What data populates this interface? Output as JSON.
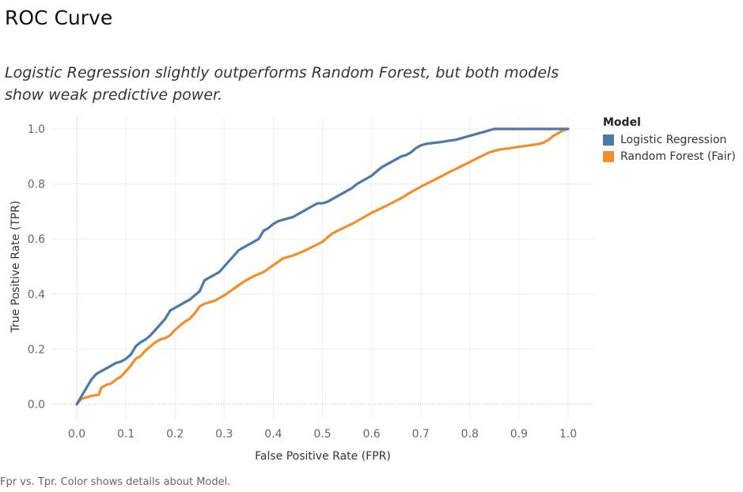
{
  "title": "ROC Curve",
  "subtitle": "Logistic Regression slightly outperforms Random Forest, but both models show weak predictive power.",
  "caption": "Fpr vs. Tpr.  Color shows details about Model.",
  "chart_data": {
    "type": "line",
    "xlabel": "False Positive Rate (FPR)",
    "ylabel": "True Positive Rate (TPR)",
    "xlim": [
      -0.05,
      1.05
    ],
    "ylim": [
      0,
      1
    ],
    "x_ticks": [
      "0.0",
      "0.1",
      "0.2",
      "0.3",
      "0.4",
      "0.5",
      "0.6",
      "0.7",
      "0.8",
      "0.9",
      "1.0"
    ],
    "y_ticks": [
      "0.0",
      "0.2",
      "0.4",
      "0.6",
      "0.8",
      "1.0"
    ],
    "grid": true,
    "legend_title": "Model",
    "legend_position": "right",
    "series": [
      {
        "name": "Logistic Regression",
        "color": "#4e79a7",
        "x": [
          0.0,
          0.01,
          0.02,
          0.03,
          0.04,
          0.05,
          0.06,
          0.07,
          0.08,
          0.09,
          0.1,
          0.11,
          0.12,
          0.13,
          0.14,
          0.15,
          0.16,
          0.17,
          0.18,
          0.19,
          0.2,
          0.21,
          0.22,
          0.23,
          0.24,
          0.25,
          0.26,
          0.27,
          0.28,
          0.29,
          0.3,
          0.31,
          0.32,
          0.33,
          0.34,
          0.35,
          0.36,
          0.37,
          0.38,
          0.39,
          0.4,
          0.41,
          0.42,
          0.43,
          0.44,
          0.45,
          0.46,
          0.47,
          0.48,
          0.49,
          0.5,
          0.51,
          0.52,
          0.53,
          0.54,
          0.55,
          0.56,
          0.57,
          0.58,
          0.59,
          0.6,
          0.61,
          0.62,
          0.63,
          0.64,
          0.65,
          0.66,
          0.67,
          0.68,
          0.69,
          0.7,
          0.71,
          0.72,
          0.73,
          0.74,
          0.75,
          0.76,
          0.77,
          0.78,
          0.79,
          0.8,
          0.81,
          0.82,
          0.83,
          0.84,
          0.85,
          0.86,
          0.87,
          0.88,
          0.89,
          0.9,
          0.91,
          0.92,
          0.93,
          0.94,
          0.95,
          0.96,
          0.97,
          0.98,
          0.99,
          1.0
        ],
        "y": [
          0.0,
          0.03,
          0.06,
          0.09,
          0.11,
          0.12,
          0.13,
          0.14,
          0.15,
          0.155,
          0.165,
          0.18,
          0.21,
          0.225,
          0.235,
          0.25,
          0.27,
          0.29,
          0.31,
          0.34,
          0.35,
          0.36,
          0.37,
          0.38,
          0.395,
          0.41,
          0.45,
          0.46,
          0.47,
          0.48,
          0.5,
          0.52,
          0.54,
          0.56,
          0.57,
          0.58,
          0.59,
          0.6,
          0.63,
          0.64,
          0.655,
          0.665,
          0.67,
          0.675,
          0.68,
          0.69,
          0.7,
          0.71,
          0.72,
          0.73,
          0.73,
          0.735,
          0.745,
          0.755,
          0.765,
          0.775,
          0.785,
          0.8,
          0.81,
          0.82,
          0.83,
          0.845,
          0.86,
          0.87,
          0.88,
          0.89,
          0.9,
          0.905,
          0.915,
          0.93,
          0.94,
          0.945,
          0.948,
          0.95,
          0.952,
          0.955,
          0.958,
          0.96,
          0.965,
          0.97,
          0.975,
          0.98,
          0.985,
          0.99,
          0.995,
          1.0,
          1.0,
          1.0,
          1.0,
          1.0,
          1.0,
          1.0,
          1.0,
          1.0,
          1.0,
          1.0,
          1.0,
          1.0,
          1.0,
          1.0,
          1.0
        ]
      },
      {
        "name": "Random Forest (Fair)",
        "color": "#f28e2b",
        "x": [
          0.0,
          0.01,
          0.03,
          0.045,
          0.05,
          0.06,
          0.07,
          0.08,
          0.09,
          0.1,
          0.11,
          0.12,
          0.13,
          0.14,
          0.15,
          0.16,
          0.17,
          0.18,
          0.19,
          0.2,
          0.21,
          0.22,
          0.23,
          0.24,
          0.25,
          0.26,
          0.27,
          0.28,
          0.3,
          0.32,
          0.34,
          0.36,
          0.38,
          0.4,
          0.42,
          0.44,
          0.46,
          0.48,
          0.5,
          0.52,
          0.54,
          0.56,
          0.58,
          0.6,
          0.62,
          0.64,
          0.66,
          0.68,
          0.7,
          0.72,
          0.74,
          0.76,
          0.78,
          0.8,
          0.82,
          0.84,
          0.86,
          0.88,
          0.9,
          0.92,
          0.94,
          0.95,
          0.96,
          0.97,
          0.98,
          0.99,
          1.0
        ],
        "y": [
          0.0,
          0.02,
          0.03,
          0.035,
          0.06,
          0.07,
          0.075,
          0.09,
          0.1,
          0.12,
          0.14,
          0.165,
          0.175,
          0.195,
          0.21,
          0.225,
          0.235,
          0.24,
          0.25,
          0.27,
          0.285,
          0.3,
          0.31,
          0.33,
          0.355,
          0.365,
          0.37,
          0.375,
          0.395,
          0.42,
          0.445,
          0.465,
          0.48,
          0.505,
          0.53,
          0.54,
          0.555,
          0.572,
          0.59,
          0.62,
          0.638,
          0.655,
          0.675,
          0.695,
          0.712,
          0.73,
          0.748,
          0.77,
          0.79,
          0.808,
          0.826,
          0.845,
          0.862,
          0.88,
          0.898,
          0.915,
          0.925,
          0.93,
          0.935,
          0.94,
          0.945,
          0.95,
          0.96,
          0.975,
          0.985,
          0.995,
          1.0
        ]
      }
    ]
  }
}
